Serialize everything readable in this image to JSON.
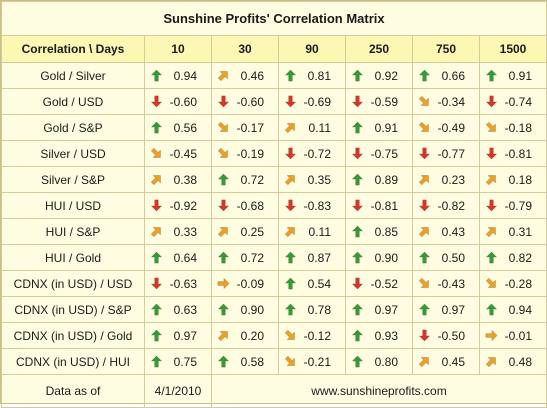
{
  "title": "Sunshine Profits' Correlation Matrix",
  "header": {
    "corner": "Correlation \\ Days",
    "columns": [
      "10",
      "30",
      "90",
      "250",
      "750",
      "1500"
    ]
  },
  "colors": {
    "up": "#2e9e3a",
    "down": "#d9332b",
    "mid": "#f0a020"
  },
  "rows": [
    {
      "label": "Gold / Silver",
      "cells": [
        {
          "v": "0.94",
          "a": "up"
        },
        {
          "v": "0.46",
          "a": "ne"
        },
        {
          "v": "0.81",
          "a": "up"
        },
        {
          "v": "0.92",
          "a": "up"
        },
        {
          "v": "0.66",
          "a": "up"
        },
        {
          "v": "0.91",
          "a": "up"
        }
      ]
    },
    {
      "label": "Gold / USD",
      "cells": [
        {
          "v": "-0.60",
          "a": "down"
        },
        {
          "v": "-0.60",
          "a": "down"
        },
        {
          "v": "-0.69",
          "a": "down"
        },
        {
          "v": "-0.59",
          "a": "down"
        },
        {
          "v": "-0.34",
          "a": "se"
        },
        {
          "v": "-0.74",
          "a": "down"
        }
      ]
    },
    {
      "label": "Gold / S&P",
      "cells": [
        {
          "v": "0.56",
          "a": "up"
        },
        {
          "v": "-0.17",
          "a": "se"
        },
        {
          "v": "0.11",
          "a": "ne"
        },
        {
          "v": "0.91",
          "a": "up"
        },
        {
          "v": "-0.49",
          "a": "se"
        },
        {
          "v": "-0.18",
          "a": "se"
        }
      ]
    },
    {
      "label": "Silver / USD",
      "cells": [
        {
          "v": "-0.45",
          "a": "se"
        },
        {
          "v": "-0.19",
          "a": "se"
        },
        {
          "v": "-0.72",
          "a": "down"
        },
        {
          "v": "-0.75",
          "a": "down"
        },
        {
          "v": "-0.77",
          "a": "down"
        },
        {
          "v": "-0.81",
          "a": "down"
        }
      ]
    },
    {
      "label": "Silver / S&P",
      "cells": [
        {
          "v": "0.38",
          "a": "ne"
        },
        {
          "v": "0.72",
          "a": "up"
        },
        {
          "v": "0.35",
          "a": "ne"
        },
        {
          "v": "0.89",
          "a": "up"
        },
        {
          "v": "0.23",
          "a": "ne"
        },
        {
          "v": "0.18",
          "a": "ne"
        }
      ]
    },
    {
      "label": "HUI / USD",
      "cells": [
        {
          "v": "-0.92",
          "a": "down"
        },
        {
          "v": "-0.68",
          "a": "down"
        },
        {
          "v": "-0.83",
          "a": "down"
        },
        {
          "v": "-0.81",
          "a": "down"
        },
        {
          "v": "-0.82",
          "a": "down"
        },
        {
          "v": "-0.79",
          "a": "down"
        }
      ]
    },
    {
      "label": "HUI / S&P",
      "cells": [
        {
          "v": "0.33",
          "a": "ne"
        },
        {
          "v": "0.25",
          "a": "ne"
        },
        {
          "v": "0.11",
          "a": "ne"
        },
        {
          "v": "0.85",
          "a": "up"
        },
        {
          "v": "0.43",
          "a": "ne"
        },
        {
          "v": "0.31",
          "a": "ne"
        }
      ]
    },
    {
      "label": "HUI / Gold",
      "cells": [
        {
          "v": "0.64",
          "a": "up"
        },
        {
          "v": "0.72",
          "a": "up"
        },
        {
          "v": "0.87",
          "a": "up"
        },
        {
          "v": "0.90",
          "a": "up"
        },
        {
          "v": "0.50",
          "a": "up"
        },
        {
          "v": "0.82",
          "a": "up"
        }
      ]
    },
    {
      "label": "CDNX (in USD) / USD",
      "cells": [
        {
          "v": "-0.63",
          "a": "down"
        },
        {
          "v": "-0.09",
          "a": "right"
        },
        {
          "v": "0.54",
          "a": "up"
        },
        {
          "v": "-0.52",
          "a": "down"
        },
        {
          "v": "-0.43",
          "a": "se"
        },
        {
          "v": "-0.28",
          "a": "se"
        }
      ]
    },
    {
      "label": "CDNX (in USD) / S&P",
      "cells": [
        {
          "v": "0.63",
          "a": "up"
        },
        {
          "v": "0.90",
          "a": "up"
        },
        {
          "v": "0.78",
          "a": "up"
        },
        {
          "v": "0.97",
          "a": "up"
        },
        {
          "v": "0.97",
          "a": "up"
        },
        {
          "v": "0.94",
          "a": "up"
        }
      ]
    },
    {
      "label": "CDNX (in USD) / Gold",
      "cells": [
        {
          "v": "0.97",
          "a": "up"
        },
        {
          "v": "0.20",
          "a": "ne"
        },
        {
          "v": "-0.12",
          "a": "se"
        },
        {
          "v": "0.93",
          "a": "up"
        },
        {
          "v": "-0.50",
          "a": "down"
        },
        {
          "v": "-0.01",
          "a": "right"
        }
      ]
    },
    {
      "label": "CDNX (in USD) / HUI",
      "cells": [
        {
          "v": "0.75",
          "a": "up"
        },
        {
          "v": "0.58",
          "a": "up"
        },
        {
          "v": "-0.21",
          "a": "se"
        },
        {
          "v": "0.80",
          "a": "up"
        },
        {
          "v": "0.45",
          "a": "ne"
        },
        {
          "v": "0.48",
          "a": "ne"
        }
      ]
    }
  ],
  "footer": {
    "data_label": "Data as of",
    "date": "4/1/2010",
    "website": "www.sunshineprofits.com"
  }
}
